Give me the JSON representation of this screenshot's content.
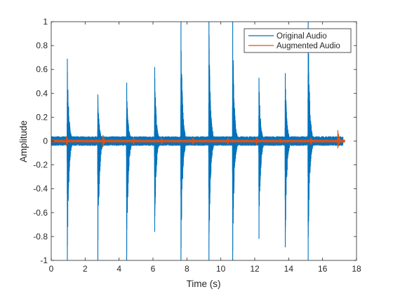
{
  "chart_data": {
    "type": "line",
    "title": "",
    "xlabel": "Time (s)",
    "ylabel": "Amplitude",
    "xlim": [
      0,
      18
    ],
    "ylim": [
      -1,
      1
    ],
    "xticks": [
      0,
      2,
      4,
      6,
      8,
      10,
      12,
      14,
      16,
      18
    ],
    "xtick_labels": [
      "0",
      "2",
      "4",
      "6",
      "8",
      "10",
      "12",
      "14",
      "16",
      "18"
    ],
    "yticks": [
      -1,
      -0.8,
      -0.6,
      -0.4,
      -0.2,
      0,
      0.2,
      0.4,
      0.6,
      0.8,
      1
    ],
    "ytick_labels": [
      "-1",
      "-0.8",
      "-0.6",
      "-0.4",
      "-0.2",
      "0",
      "0.2",
      "0.4",
      "0.6",
      "0.8",
      "1"
    ],
    "grid": false,
    "legend_position": "top-right",
    "series": [
      {
        "name": "Original Audio",
        "color": "#0072BD",
        "duration": 17.2,
        "noise_level": 0.04,
        "events": [
          {
            "t": 0.95,
            "pos": 0.69,
            "neg": -1.0
          },
          {
            "t": 2.75,
            "pos": 0.39,
            "neg": -1.0
          },
          {
            "t": 4.45,
            "pos": 0.49,
            "neg": -1.0
          },
          {
            "t": 6.1,
            "pos": 0.62,
            "neg": -0.76
          },
          {
            "t": 7.65,
            "pos": 1.0,
            "neg": -1.0
          },
          {
            "t": 9.3,
            "pos": 1.0,
            "neg": -1.0
          },
          {
            "t": 10.7,
            "pos": 1.0,
            "neg": -1.0
          },
          {
            "t": 12.25,
            "pos": 0.53,
            "neg": -0.82
          },
          {
            "t": 13.8,
            "pos": 0.57,
            "neg": -0.89
          },
          {
            "t": 15.15,
            "pos": 1.0,
            "neg": -1.0
          }
        ]
      },
      {
        "name": "Augmented Audio",
        "color": "#D95319",
        "duration": 17.3,
        "noise_level": 0.012,
        "events": [
          {
            "t": 0.9,
            "pos": 0.04,
            "neg": -0.04
          },
          {
            "t": 3.05,
            "pos": 0.05,
            "neg": -0.05
          },
          {
            "t": 4.85,
            "pos": 0.03,
            "neg": -0.03
          },
          {
            "t": 6.5,
            "pos": 0.03,
            "neg": -0.03
          },
          {
            "t": 8.35,
            "pos": 0.03,
            "neg": -0.03
          },
          {
            "t": 10.4,
            "pos": 0.03,
            "neg": -0.03
          },
          {
            "t": 12.1,
            "pos": 0.03,
            "neg": -0.03
          },
          {
            "t": 13.5,
            "pos": 0.02,
            "neg": -0.02
          },
          {
            "t": 15.3,
            "pos": 0.03,
            "neg": -0.03
          },
          {
            "t": 16.9,
            "pos": 0.09,
            "neg": -0.06
          }
        ]
      }
    ]
  }
}
